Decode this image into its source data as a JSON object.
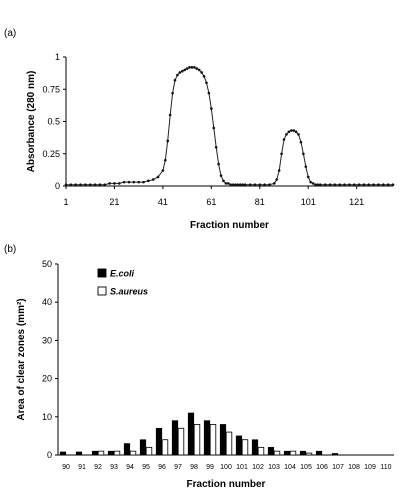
{
  "chart_data": [
    {
      "type": "line",
      "panel_label": "(a)",
      "xlabel": "Fraction number",
      "ylabel": "Absorbance (280 nm)",
      "xlim": [
        1,
        136
      ],
      "ylim": [
        0,
        1
      ],
      "x_ticks": [
        1,
        21,
        41,
        61,
        81,
        101,
        121
      ],
      "x_tick_labels": [
        "1",
        "21",
        "41",
        "61",
        "81",
        "101",
        "121"
      ],
      "y_ticks": [
        0,
        0.25,
        0.5,
        0.75,
        1
      ],
      "y_tick_labels": [
        "0",
        "0.25",
        "0.5",
        "0.75",
        "1"
      ],
      "grid": false,
      "series": [
        {
          "marker": "circle",
          "x": [
            1,
            3,
            5,
            7,
            9,
            11,
            13,
            15,
            17,
            19,
            21,
            23,
            25,
            27,
            29,
            31,
            33,
            35,
            37,
            39,
            41,
            42,
            43,
            44,
            45,
            46,
            47,
            48,
            49,
            50,
            51,
            52,
            53,
            54,
            55,
            56,
            57,
            58,
            59,
            60,
            61,
            62,
            63,
            64,
            65,
            66,
            67,
            68,
            69,
            70,
            71,
            72,
            73,
            74,
            75,
            77,
            79,
            81,
            83,
            85,
            87,
            88,
            89,
            90,
            91,
            92,
            93,
            94,
            95,
            96,
            97,
            98,
            99,
            100,
            101,
            102,
            103,
            104,
            105,
            106,
            108,
            110,
            112,
            114,
            116,
            118,
            120,
            122,
            124,
            126,
            128,
            130,
            132,
            134,
            136
          ],
          "y": [
            0.01,
            0.01,
            0.01,
            0.01,
            0.01,
            0.01,
            0.01,
            0.01,
            0.01,
            0.02,
            0.02,
            0.02,
            0.03,
            0.03,
            0.03,
            0.03,
            0.03,
            0.04,
            0.05,
            0.07,
            0.12,
            0.2,
            0.35,
            0.55,
            0.72,
            0.82,
            0.86,
            0.88,
            0.89,
            0.9,
            0.91,
            0.92,
            0.92,
            0.92,
            0.91,
            0.9,
            0.88,
            0.85,
            0.8,
            0.72,
            0.6,
            0.45,
            0.3,
            0.17,
            0.08,
            0.04,
            0.02,
            0.02,
            0.01,
            0.01,
            0.01,
            0.01,
            0.01,
            0.01,
            0.01,
            0.01,
            0.01,
            0.01,
            0.01,
            0.01,
            0.02,
            0.05,
            0.12,
            0.25,
            0.36,
            0.4,
            0.42,
            0.43,
            0.43,
            0.42,
            0.4,
            0.34,
            0.25,
            0.15,
            0.07,
            0.03,
            0.02,
            0.01,
            0.01,
            0.01,
            0.01,
            0.01,
            0.01,
            0.01,
            0.01,
            0.01,
            0.01,
            0.01,
            0.01,
            0.01,
            0.01,
            0.01,
            0.01,
            0.01,
            0.01
          ]
        }
      ]
    },
    {
      "type": "bar",
      "panel_label": "(b)",
      "xlabel": "Fraction number",
      "ylabel": "Area of clear zones (mm²)",
      "ylim": [
        0,
        50
      ],
      "y_ticks": [
        0,
        10,
        20,
        30,
        40,
        50
      ],
      "y_tick_labels": [
        "0",
        "10",
        "20",
        "30",
        "40",
        "50"
      ],
      "grid": false,
      "legend_position": "top-left",
      "categories": [
        "90",
        "91",
        "92",
        "93",
        "94",
        "95",
        "96",
        "97",
        "98",
        "99",
        "100",
        "101",
        "102",
        "103",
        "104",
        "105",
        "106",
        "107",
        "108",
        "109",
        "110"
      ],
      "series": [
        {
          "name": "E.coli",
          "color": "#000000",
          "values": [
            0.8,
            0.8,
            1,
            1,
            3,
            4,
            7,
            9,
            11,
            9,
            8,
            5,
            4,
            2,
            1,
            1,
            1,
            0.4,
            0,
            0,
            0
          ]
        },
        {
          "name": "S.aureus",
          "color": "#ffffff",
          "values": [
            0,
            0,
            1,
            1,
            1,
            2,
            4,
            7,
            8,
            8,
            6,
            4,
            2,
            1,
            1,
            0.5,
            0,
            0,
            0,
            0,
            0
          ]
        }
      ]
    }
  ]
}
